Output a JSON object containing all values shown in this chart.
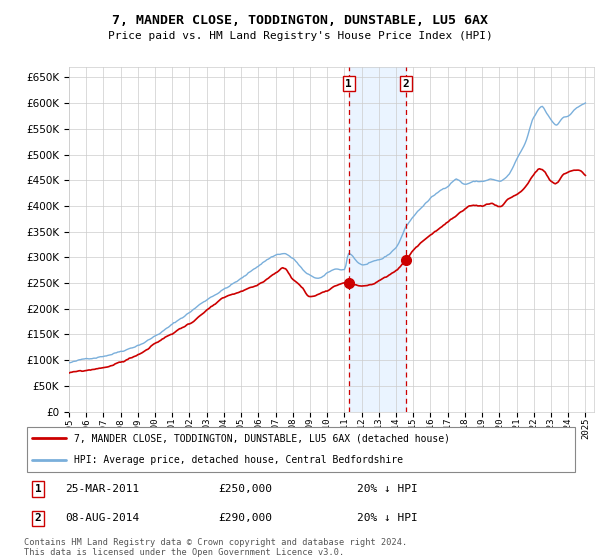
{
  "title": "7, MANDER CLOSE, TODDINGTON, DUNSTABLE, LU5 6AX",
  "subtitle": "Price paid vs. HM Land Registry's House Price Index (HPI)",
  "hpi_color": "#7aafdb",
  "price_color": "#cc0000",
  "vline_color": "#cc0000",
  "shade_color": "#ddeeff",
  "t1_year": 2011.25,
  "t2_year": 2014.58,
  "t1_price": 250000,
  "t2_price": 290000,
  "ylim": [
    0,
    670000
  ],
  "yticks": [
    0,
    50000,
    100000,
    150000,
    200000,
    250000,
    300000,
    350000,
    400000,
    450000,
    500000,
    550000,
    600000,
    650000
  ],
  "xstart": 1995,
  "xend": 2025,
  "legend_house_label": "7, MANDER CLOSE, TODDINGTON, DUNSTABLE, LU5 6AX (detached house)",
  "legend_hpi_label": "HPI: Average price, detached house, Central Bedfordshire",
  "footnote": "Contains HM Land Registry data © Crown copyright and database right 2024.\nThis data is licensed under the Open Government Licence v3.0."
}
